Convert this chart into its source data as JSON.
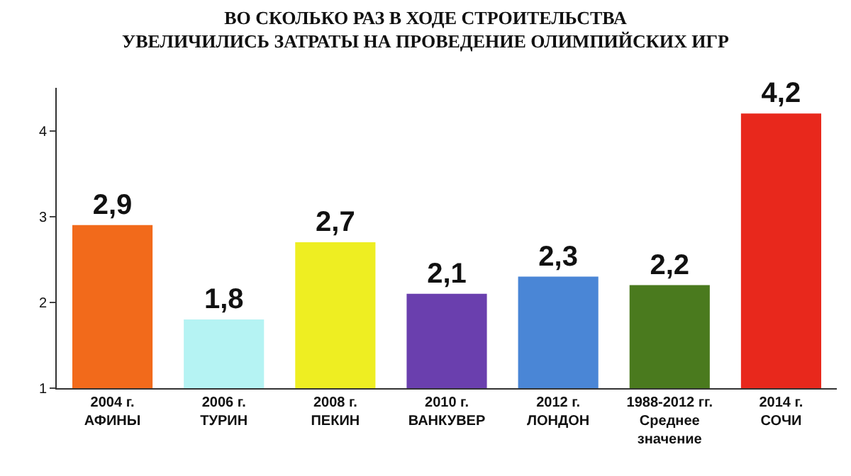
{
  "chart_data": {
    "type": "bar",
    "title": "ВО СКОЛЬКО РАЗ В ХОДЕ СТРОИТЕЛЬСТВА\nУВЕЛИЧИЛИСЬ ЗАТРАТЫ НА ПРОВЕДЕНИЕ ОЛИМПИЙСКИХ ИГР",
    "categories": [
      "2004 г.\nАФИНЫ",
      "2006 г.\nТУРИН",
      "2008 г.\nПЕКИН",
      "2010 г.\nВАНКУВЕР",
      "2012 г.\nЛОНДОН",
      "1988-2012 гг.\nСреднее\nзначение",
      "2014 г.\nСОЧИ"
    ],
    "values": [
      2.9,
      1.8,
      2.7,
      2.1,
      2.3,
      2.2,
      4.2
    ],
    "colors": [
      "#f26a1b",
      "#b5f3f3",
      "#eeee22",
      "#6a3fae",
      "#4a86d6",
      "#4a7a1e",
      "#e8281c"
    ],
    "value_labels": [
      "2,9",
      "1,8",
      "2,7",
      "2,1",
      "2,3",
      "2,2",
      "4,2"
    ],
    "ylim": [
      1,
      4.5
    ],
    "yticks": [
      1,
      2,
      3,
      4
    ],
    "grid": false
  }
}
